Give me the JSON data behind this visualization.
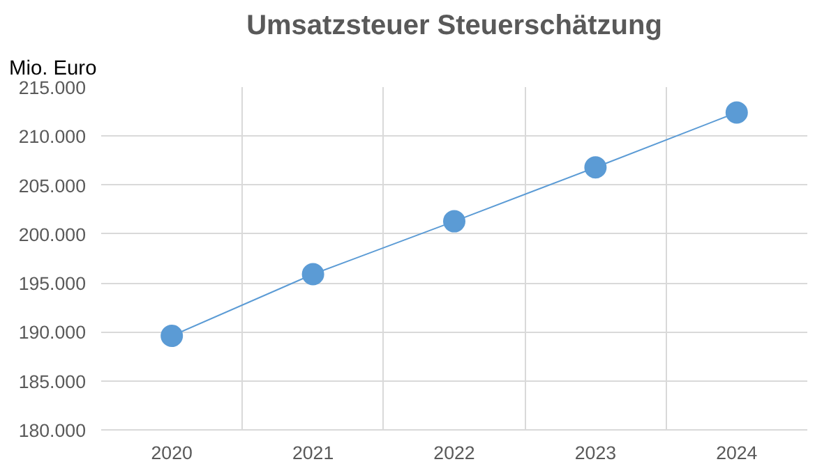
{
  "chart_data": {
    "type": "line",
    "title": "Umsatzsteuer Steuerschätzung",
    "ylabel": "Mio. Euro",
    "categories": [
      "2020",
      "2021",
      "2022",
      "2023",
      "2024"
    ],
    "series": [
      {
        "color": "#5b9bd5",
        "values": [
          189600,
          195900,
          201300,
          206800,
          212400
        ]
      }
    ],
    "ylim": [
      180000,
      215000
    ],
    "yticks": [
      {
        "value": 180000,
        "label": "180.000"
      },
      {
        "value": 185000,
        "label": "185.000"
      },
      {
        "value": 190000,
        "label": "190.000"
      },
      {
        "value": 195000,
        "label": "195.000"
      },
      {
        "value": 200000,
        "label": "200.000"
      },
      {
        "value": 205000,
        "label": "205.000"
      },
      {
        "value": 210000,
        "label": "210.000"
      },
      {
        "value": 215000,
        "label": "215.000"
      }
    ],
    "grid": true,
    "marker": "circle",
    "line_style": "solid"
  }
}
